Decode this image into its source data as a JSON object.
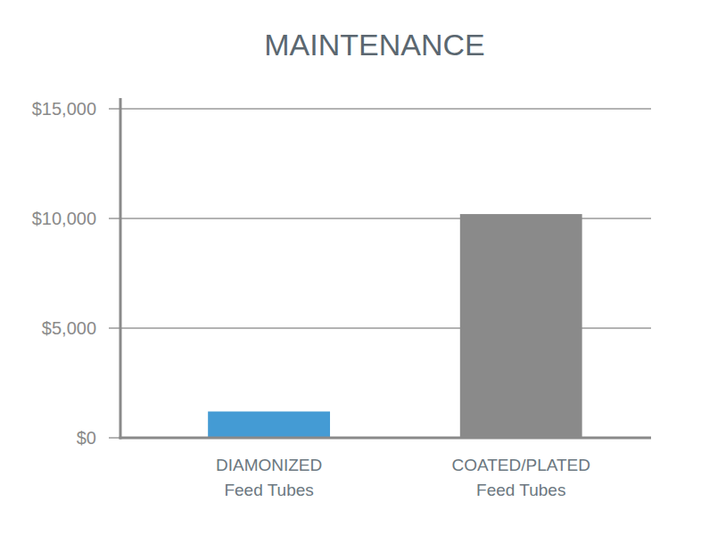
{
  "chart_data": {
    "type": "bar",
    "title": "MAINTENANCE",
    "categories": [
      "DIAMONIZED\nFeed Tubes",
      "COATED/PLATED\nFeed Tubes"
    ],
    "values": [
      1200,
      10200
    ],
    "colors": [
      "#449bd4",
      "#8a8a8a"
    ],
    "ylim": [
      0,
      15000
    ],
    "yticks": [
      {
        "value": 0,
        "label": "$0"
      },
      {
        "value": 5000,
        "label": "$5,000"
      },
      {
        "value": 10000,
        "label": "$10,000"
      },
      {
        "value": 15000,
        "label": "$15,000"
      }
    ],
    "grid": true
  }
}
